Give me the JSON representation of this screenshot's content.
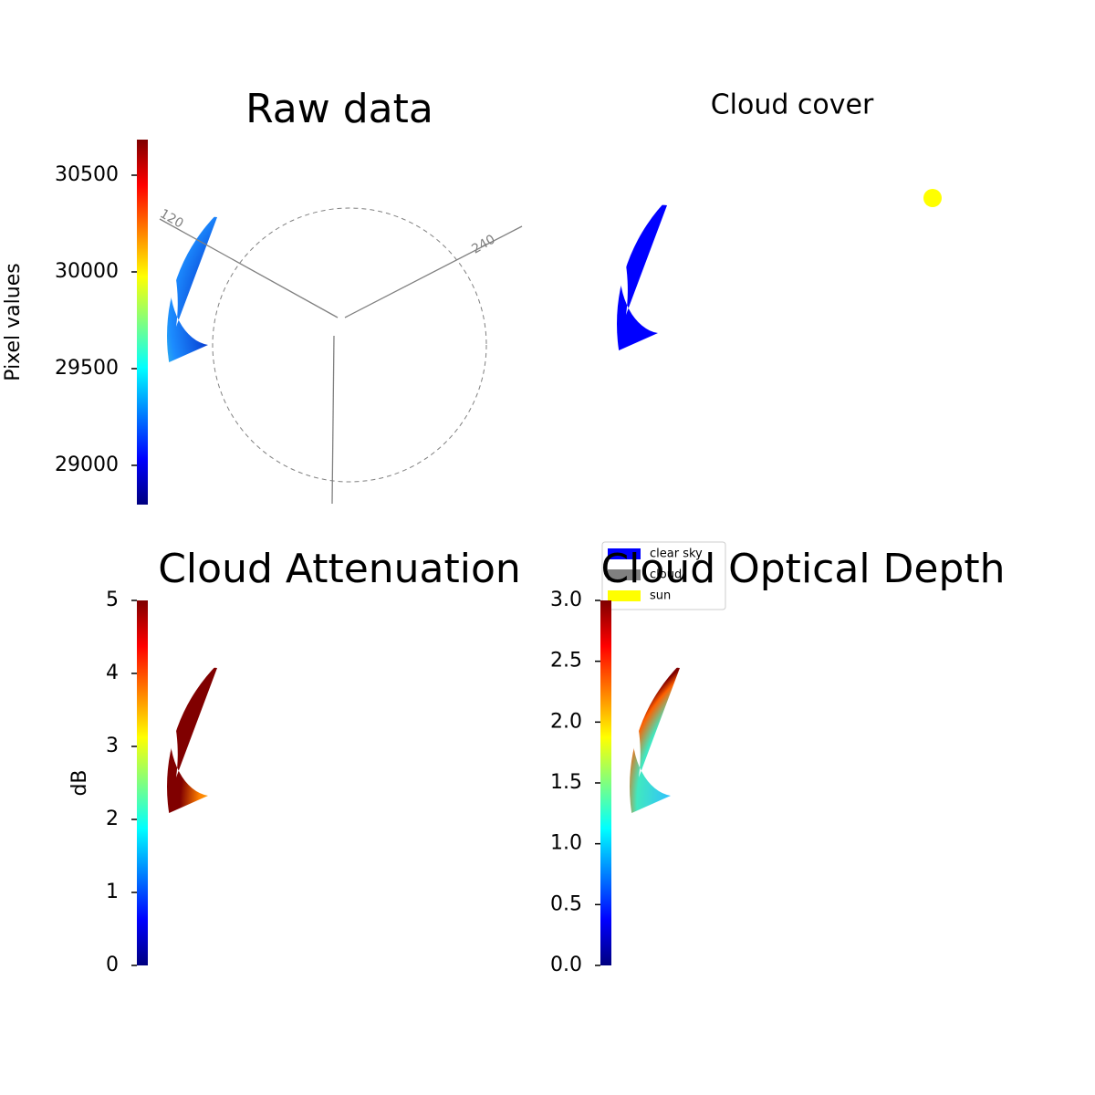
{
  "chart_data": [
    {
      "type": "image",
      "title": "Raw data",
      "ylabel": "Pixel values",
      "colormap": "jet",
      "ylim": [
        28797,
        30684
      ],
      "yticks": [
        29000,
        29500,
        30000,
        30500
      ],
      "annotations": [
        "120",
        "240"
      ]
    },
    {
      "type": "image",
      "title": "Cloud cover",
      "series": [
        {
          "name": "clear sky",
          "color": "#0000ff"
        },
        {
          "name": "cloud",
          "color": "#808080"
        },
        {
          "name": "sun",
          "color": "#ffff00"
        }
      ]
    },
    {
      "type": "image",
      "title": "Cloud Attenuation",
      "ylabel": "dB",
      "colormap": "jet",
      "ylim": [
        0,
        5
      ],
      "yticks": [
        0,
        1,
        2,
        3,
        4,
        5
      ]
    },
    {
      "type": "image",
      "title": "Cloud Optical Depth",
      "colormap": "jet",
      "ylim": [
        0,
        3
      ],
      "yticks": [
        {
          "value": 0,
          "label": "0.0"
        },
        {
          "value": 0.5,
          "label": "0.5"
        },
        {
          "value": 1,
          "label": "1.0"
        },
        {
          "value": 1.5,
          "label": "1.5"
        },
        {
          "value": 2,
          "label": "2.0"
        },
        {
          "value": 2.5,
          "label": "2.5"
        },
        {
          "value": 3,
          "label": "3.0"
        }
      ]
    }
  ]
}
